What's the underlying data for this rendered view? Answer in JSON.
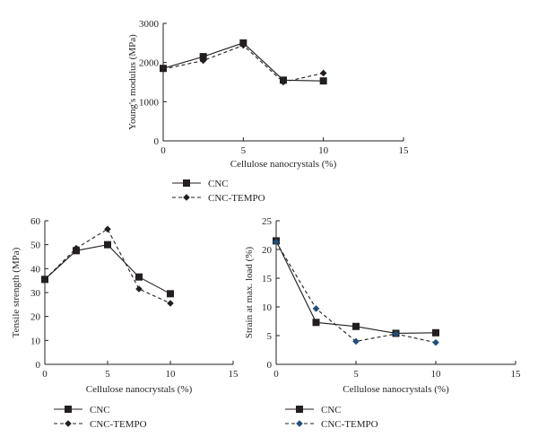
{
  "chart_data": [
    {
      "type": "line",
      "x": [
        0,
        2.5,
        5,
        7.5,
        10
      ],
      "xlabel": "Cellulose nanocrystals (%)",
      "ylabel": "Young's modulus (MPa)",
      "xlim": [
        0,
        15
      ],
      "ylim": [
        0,
        3000
      ],
      "xticks": [
        0,
        5,
        10,
        15
      ],
      "yticks": [
        0,
        1000,
        2000,
        3000
      ],
      "grid": false,
      "legend_position": "below",
      "series": [
        {
          "name": "CNC",
          "values": [
            1850,
            2150,
            2500,
            1550,
            1530
          ],
          "color": "#231f20",
          "marker": "square",
          "dash": "solid"
        },
        {
          "name": "CNC-TEMPO",
          "values": [
            1830,
            2050,
            2440,
            1500,
            1730
          ],
          "color": "#231f20",
          "marker": "diamond",
          "dash": "dashed"
        }
      ]
    },
    {
      "type": "line",
      "x": [
        0,
        2.5,
        5,
        7.5,
        10
      ],
      "xlabel": "Cellulose nanocrystals (%)",
      "ylabel": "Tensile strength (MPa)",
      "xlim": [
        0,
        15
      ],
      "ylim": [
        0,
        60
      ],
      "xticks": [
        0,
        5,
        10,
        15
      ],
      "yticks": [
        0,
        10,
        20,
        30,
        40,
        50,
        60
      ],
      "grid": false,
      "legend_position": "below",
      "series": [
        {
          "name": "CNC",
          "values": [
            35.5,
            47.5,
            50,
            36.5,
            29.5
          ],
          "color": "#231f20",
          "marker": "square",
          "dash": "solid"
        },
        {
          "name": "CNC-TEMPO",
          "values": [
            35.5,
            48.5,
            56.5,
            31.5,
            25.5
          ],
          "color": "#231f20",
          "marker": "diamond",
          "dash": "dashed"
        }
      ]
    },
    {
      "type": "line",
      "x": [
        0,
        2.5,
        5,
        7.5,
        10
      ],
      "xlabel": "Cellulose nanocrystals (%)",
      "ylabel": "Strain at max. load (%)",
      "xlim": [
        0,
        15
      ],
      "ylim": [
        0,
        25
      ],
      "xticks": [
        0,
        5,
        10,
        15
      ],
      "yticks": [
        0,
        5,
        10,
        15,
        20,
        25
      ],
      "grid": false,
      "legend_position": "below",
      "series": [
        {
          "name": "CNC",
          "values": [
            21.5,
            7.3,
            6.6,
            5.4,
            5.5
          ],
          "color": "#231f20",
          "marker": "square",
          "dash": "solid"
        },
        {
          "name": "CNC-TEMPO",
          "values": [
            21.3,
            9.7,
            4.0,
            5.3,
            3.8
          ],
          "color": "#1f4e79",
          "marker": "diamond",
          "dash": "dashed"
        }
      ]
    }
  ]
}
